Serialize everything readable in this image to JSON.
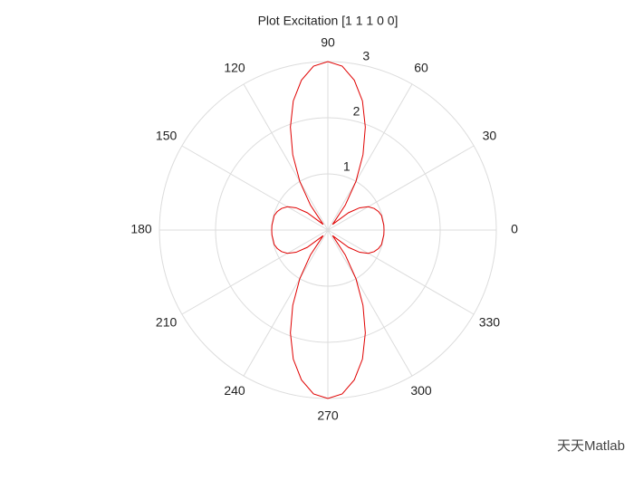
{
  "chart_data": {
    "type": "polar",
    "title": "Plot Excitation [1 1 1 0 0]",
    "x": [
      0,
      5,
      10,
      15,
      20,
      25,
      30,
      35,
      40,
      45,
      50,
      55,
      60,
      65,
      70,
      75,
      80,
      85,
      90,
      95,
      100,
      105,
      110,
      115,
      120,
      125,
      130,
      135,
      140,
      145,
      150,
      155,
      160,
      165,
      170,
      175,
      180,
      185,
      190,
      195,
      200,
      205,
      210,
      215,
      220,
      225,
      230,
      235,
      240,
      245,
      250,
      255,
      260,
      265,
      270,
      275,
      280,
      285,
      290,
      295,
      300,
      305,
      310,
      315,
      320,
      325,
      330,
      335,
      340,
      345,
      350,
      355,
      360
    ],
    "values": [
      1.0,
      1.0,
      0.99,
      0.99,
      0.96,
      0.91,
      0.83,
      0.69,
      0.48,
      0.21,
      0.13,
      0.54,
      1.0,
      1.48,
      1.95,
      2.38,
      2.71,
      2.93,
      3.0,
      2.93,
      2.71,
      2.38,
      1.95,
      1.48,
      1.0,
      0.54,
      0.13,
      0.21,
      0.48,
      0.69,
      0.83,
      0.91,
      0.96,
      0.99,
      0.99,
      1.0,
      1.0,
      1.0,
      0.99,
      0.99,
      0.96,
      0.91,
      0.83,
      0.69,
      0.48,
      0.21,
      0.13,
      0.54,
      1.0,
      1.48,
      1.95,
      2.38,
      2.71,
      2.93,
      3.0,
      2.93,
      2.71,
      2.38,
      1.95,
      1.48,
      1.0,
      0.54,
      0.13,
      0.21,
      0.48,
      0.69,
      0.83,
      0.91,
      0.96,
      0.99,
      0.99,
      1.0,
      1.0
    ],
    "color": "#e00000",
    "rlim": [
      0,
      3
    ],
    "rticks": [
      1,
      2,
      3
    ],
    "thetaticks": [
      0,
      30,
      60,
      90,
      120,
      150,
      180,
      210,
      240,
      270,
      300,
      330
    ],
    "grid": true,
    "watermark": "天天Matlab"
  }
}
